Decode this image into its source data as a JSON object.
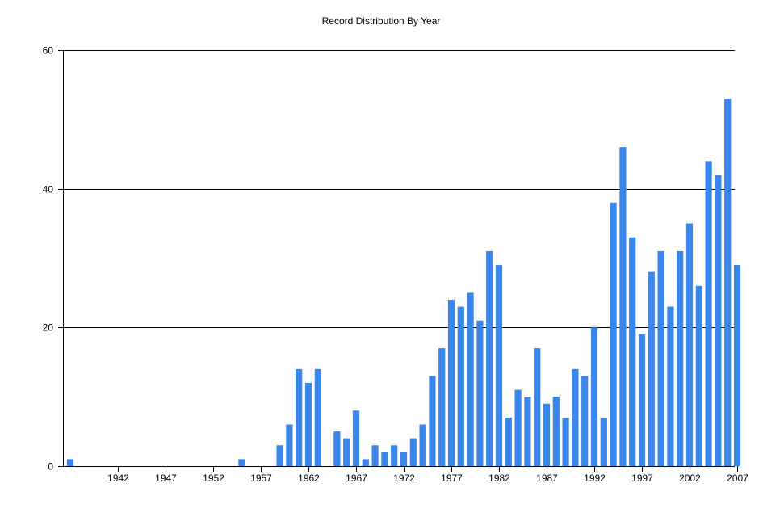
{
  "chart_data": {
    "type": "bar",
    "title": "Record Distribution By Year",
    "xlabel": "",
    "ylabel": "",
    "ylim": [
      0,
      60
    ],
    "yticks": [
      0,
      20,
      40,
      60
    ],
    "xticks": [
      "1942",
      "1947",
      "1952",
      "1957",
      "1962",
      "1967",
      "1972",
      "1977",
      "1982",
      "1987",
      "1992",
      "1997",
      "2002",
      "2007"
    ],
    "grid": "horizontal",
    "legend": "none",
    "bar_color": "#3a86ea",
    "x": [
      1937,
      1938,
      1939,
      1940,
      1941,
      1942,
      1943,
      1944,
      1945,
      1946,
      1947,
      1948,
      1949,
      1950,
      1951,
      1952,
      1953,
      1954,
      1955,
      1956,
      1957,
      1958,
      1959,
      1960,
      1961,
      1962,
      1963,
      1964,
      1965,
      1966,
      1967,
      1968,
      1969,
      1970,
      1971,
      1972,
      1973,
      1974,
      1975,
      1976,
      1977,
      1978,
      1979,
      1980,
      1981,
      1982,
      1983,
      1984,
      1985,
      1986,
      1987,
      1988,
      1989,
      1990,
      1991,
      1992,
      1993,
      1994,
      1995,
      1996,
      1997,
      1998,
      1999,
      2000,
      2001,
      2002,
      2003,
      2004,
      2005,
      2006,
      2007
    ],
    "values": [
      1,
      0,
      0,
      0,
      0,
      0,
      0,
      0,
      0,
      0,
      0,
      0,
      0,
      0,
      0,
      0,
      0,
      0,
      1,
      0,
      0,
      0,
      3,
      6,
      14,
      12,
      14,
      0,
      5,
      4,
      8,
      1,
      3,
      2,
      3,
      2,
      4,
      6,
      13,
      17,
      24,
      23,
      25,
      21,
      31,
      29,
      7,
      11,
      10,
      17,
      9,
      10,
      7,
      14,
      13,
      20,
      7,
      38,
      46,
      33,
      19,
      28,
      31,
      23,
      31,
      35,
      26,
      44,
      42,
      53,
      29
    ]
  }
}
